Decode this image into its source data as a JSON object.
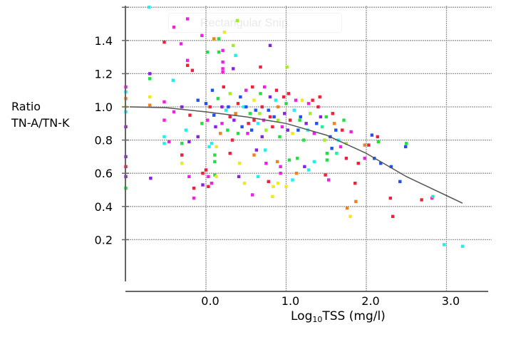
{
  "overlay": {
    "snip_label": "Rectangular Snip"
  },
  "chart_data": {
    "type": "scatter",
    "title": "",
    "xlabel_main": "Log",
    "xlabel_sub": "10",
    "xlabel_rest": "TSS (mg/l)",
    "ylabel_line1": "Ratio",
    "ylabel_line2": "TN-A/TN-K",
    "xlim": [
      -1.0,
      3.5
    ],
    "ylim": [
      0.0,
      1.6
    ],
    "x_ticks": [
      "0.0",
      "1.0",
      "2.0",
      "3.0"
    ],
    "x_tick_values": [
      0,
      1,
      2,
      3
    ],
    "y_ticks": [
      "0.2",
      "0.4",
      "0.6",
      "0.8",
      "1.0",
      "1.2",
      "1.4"
    ],
    "y_tick_values": [
      0.2,
      0.4,
      0.6,
      0.8,
      1.0,
      1.2,
      1.4
    ],
    "grid": true,
    "palette": [
      "#f0203a",
      "#f020e0",
      "#8a20e8",
      "#2050f0",
      "#20eef0",
      "#20e040",
      "#a0f020",
      "#f0e820",
      "#f08020",
      "#20f0a0"
    ],
    "trend_line": [
      [
        -0.95,
        1.0
      ],
      [
        -0.5,
        0.995
      ],
      [
        0.0,
        0.97
      ],
      [
        0.5,
        0.94
      ],
      [
        1.0,
        0.9
      ],
      [
        1.5,
        0.83
      ],
      [
        2.0,
        0.72
      ],
      [
        2.5,
        0.58
      ],
      [
        3.2,
        0.42
      ]
    ],
    "points": [
      [
        -0.71,
        1.6,
        4
      ],
      [
        -0.23,
        1.53,
        1
      ],
      [
        -0.4,
        1.48,
        1
      ],
      [
        0.39,
        1.52,
        6
      ],
      [
        0.23,
        1.45,
        7
      ],
      [
        -0.05,
        1.43,
        1
      ],
      [
        0.1,
        1.41,
        8
      ],
      [
        0.16,
        1.41,
        5
      ],
      [
        -0.52,
        1.39,
        0
      ],
      [
        -0.31,
        1.38,
        1
      ],
      [
        0.8,
        1.37,
        2
      ],
      [
        0.34,
        1.37,
        6
      ],
      [
        0.02,
        1.33,
        5
      ],
      [
        0.16,
        1.33,
        5
      ],
      [
        0.21,
        1.34,
        1
      ],
      [
        0.37,
        1.31,
        4
      ],
      [
        -0.23,
        1.28,
        1
      ],
      [
        -0.23,
        1.25,
        0
      ],
      [
        -0.17,
        1.22,
        0
      ],
      [
        0.21,
        1.27,
        1
      ],
      [
        0.21,
        1.23,
        1
      ],
      [
        0.21,
        1.21,
        1
      ],
      [
        0.34,
        1.23,
        2
      ],
      [
        0.68,
        1.24,
        0
      ],
      [
        1.01,
        1.24,
        6
      ],
      [
        -0.7,
        1.2,
        2
      ],
      [
        -0.7,
        1.17,
        5
      ],
      [
        -0.41,
        1.16,
        4
      ],
      [
        -1.0,
        1.12,
        1
      ],
      [
        -1.0,
        1.09,
        4
      ],
      [
        -1.0,
        1.05,
        8
      ],
      [
        -0.7,
        1.06,
        7
      ],
      [
        -0.7,
        1.01,
        8
      ],
      [
        -0.52,
        1.03,
        1
      ],
      [
        -1.0,
        0.97,
        4
      ],
      [
        -1.0,
        1.0,
        7
      ],
      [
        -1.0,
        0.88,
        2
      ],
      [
        -0.52,
        0.92,
        1
      ],
      [
        -1.0,
        0.7,
        2
      ],
      [
        -1.0,
        0.64,
        0
      ],
      [
        -1.0,
        0.58,
        2
      ],
      [
        -1.0,
        0.51,
        5
      ],
      [
        -0.69,
        0.57,
        2
      ],
      [
        -0.52,
        0.82,
        4
      ],
      [
        -0.52,
        0.78,
        4
      ],
      [
        -0.46,
        0.79,
        1
      ],
      [
        -0.3,
        0.78,
        5
      ],
      [
        -0.3,
        0.71,
        0
      ],
      [
        -0.3,
        0.66,
        7
      ],
      [
        -0.21,
        0.79,
        2
      ],
      [
        -0.21,
        0.58,
        1
      ],
      [
        -0.15,
        0.51,
        0
      ],
      [
        -0.15,
        0.45,
        1
      ],
      [
        -0.04,
        0.6,
        0
      ],
      [
        0.0,
        0.62,
        0
      ],
      [
        -0.04,
        0.53,
        2
      ],
      [
        0.03,
        0.52,
        0
      ],
      [
        0.07,
        0.54,
        1
      ],
      [
        0.03,
        0.58,
        1
      ],
      [
        0.11,
        0.71,
        5
      ],
      [
        0.11,
        0.67,
        5
      ],
      [
        0.11,
        0.59,
        5
      ],
      [
        0.13,
        0.58,
        7
      ],
      [
        0.04,
        0.76,
        4
      ],
      [
        0.07,
        0.78,
        4
      ],
      [
        0.13,
        0.76,
        7
      ],
      [
        0.3,
        0.72,
        0
      ],
      [
        0.42,
        0.66,
        7
      ],
      [
        0.41,
        0.58,
        2
      ],
      [
        0.48,
        0.54,
        7
      ],
      [
        0.58,
        0.47,
        1
      ],
      [
        0.65,
        0.58,
        4
      ],
      [
        0.6,
        0.71,
        8
      ],
      [
        0.63,
        0.74,
        2
      ],
      [
        0.74,
        0.74,
        4
      ],
      [
        0.75,
        0.66,
        1
      ],
      [
        0.78,
        0.55,
        0
      ],
      [
        0.84,
        0.52,
        7
      ],
      [
        0.9,
        0.54,
        7
      ],
      [
        0.83,
        0.46,
        7
      ],
      [
        0.89,
        0.67,
        8
      ],
      [
        0.93,
        0.64,
        1
      ],
      [
        0.93,
        0.6,
        1
      ],
      [
        1.0,
        0.52,
        7
      ],
      [
        1.08,
        0.56,
        4
      ],
      [
        1.04,
        0.68,
        5
      ],
      [
        1.14,
        0.69,
        5
      ],
      [
        1.13,
        0.6,
        8
      ],
      [
        1.23,
        0.64,
        2
      ],
      [
        1.28,
        0.62,
        4
      ],
      [
        1.35,
        0.67,
        4
      ],
      [
        1.49,
        0.59,
        0
      ],
      [
        1.53,
        0.56,
        1
      ],
      [
        1.51,
        0.72,
        5
      ],
      [
        1.51,
        0.68,
        5
      ],
      [
        1.63,
        0.72,
        9
      ],
      [
        1.57,
        0.75,
        3
      ],
      [
        1.75,
        0.69,
        0
      ],
      [
        1.81,
        0.85,
        1
      ],
      [
        1.86,
        0.54,
        0
      ],
      [
        1.87,
        0.43,
        8
      ],
      [
        1.76,
        0.39,
        8
      ],
      [
        1.8,
        0.34,
        7
      ],
      [
        1.9,
        0.66,
        0
      ],
      [
        1.98,
        0.69,
        1
      ],
      [
        1.98,
        0.77,
        8
      ],
      [
        2.07,
        0.83,
        3
      ],
      [
        2.14,
        0.82,
        0
      ],
      [
        2.15,
        0.79,
        5
      ],
      [
        2.03,
        0.77,
        0
      ],
      [
        2.1,
        0.69,
        3
      ],
      [
        2.18,
        0.66,
        3
      ],
      [
        2.31,
        0.64,
        3
      ],
      [
        2.42,
        0.55,
        3
      ],
      [
        2.3,
        0.45,
        0
      ],
      [
        2.33,
        0.34,
        0
      ],
      [
        2.49,
        0.76,
        3
      ],
      [
        2.5,
        0.78,
        5
      ],
      [
        2.69,
        0.44,
        0
      ],
      [
        2.82,
        0.45,
        1
      ],
      [
        2.83,
        0.46,
        9
      ],
      [
        2.97,
        0.17,
        4
      ],
      [
        3.2,
        0.16,
        4
      ],
      [
        -0.3,
        1.0,
        2
      ],
      [
        -0.2,
        0.95,
        0
      ],
      [
        -0.1,
        1.04,
        3
      ],
      [
        -0.05,
        0.9,
        5
      ],
      [
        -0.4,
        0.97,
        1
      ],
      [
        -0.25,
        0.86,
        4
      ],
      [
        -0.1,
        0.82,
        2
      ],
      [
        0.05,
        1.0,
        0
      ],
      [
        0.1,
        0.95,
        3
      ],
      [
        0.15,
        1.05,
        5
      ],
      [
        0.2,
        0.9,
        1
      ],
      [
        0.25,
        0.98,
        4
      ],
      [
        0.3,
        1.08,
        6
      ],
      [
        0.35,
        0.92,
        2
      ],
      [
        0.4,
        1.02,
        0
      ],
      [
        0.45,
        0.88,
        3
      ],
      [
        0.5,
        1.1,
        1
      ],
      [
        0.55,
        0.96,
        5
      ],
      [
        0.6,
        1.04,
        7
      ],
      [
        0.65,
        0.9,
        4
      ],
      [
        0.7,
        1.0,
        0
      ],
      [
        0.75,
        0.86,
        6
      ],
      [
        0.8,
        1.06,
        2
      ],
      [
        0.85,
        0.94,
        3
      ],
      [
        0.9,
        1.0,
        8
      ],
      [
        0.95,
        0.88,
        1
      ],
      [
        1.0,
        1.02,
        5
      ],
      [
        1.05,
        0.92,
        0
      ],
      [
        1.1,
        0.98,
        4
      ],
      [
        1.15,
        0.86,
        3
      ],
      [
        1.2,
        1.04,
        7
      ],
      [
        1.25,
        0.9,
        2
      ],
      [
        1.3,
        0.96,
        6
      ],
      [
        1.35,
        0.84,
        1
      ],
      [
        1.4,
        1.0,
        0
      ],
      [
        1.45,
        0.88,
        9
      ],
      [
        1.5,
        0.94,
        5
      ],
      [
        1.55,
        0.82,
        3
      ],
      [
        1.6,
        0.9,
        8
      ],
      [
        1.65,
        0.8,
        4
      ],
      [
        1.7,
        0.86,
        0
      ],
      [
        1.75,
        0.78,
        6
      ],
      [
        0.08,
        1.1,
        3
      ],
      [
        0.18,
        0.84,
        8
      ],
      [
        0.28,
        1.0,
        3
      ],
      [
        0.33,
        0.8,
        0
      ],
      [
        0.43,
        1.06,
        3
      ],
      [
        0.52,
        0.84,
        1
      ],
      [
        0.58,
        1.12,
        0
      ],
      [
        0.62,
        0.98,
        3
      ],
      [
        0.68,
        1.08,
        5
      ],
      [
        0.72,
        0.92,
        1
      ],
      [
        0.78,
        0.98,
        3
      ],
      [
        0.88,
        1.1,
        0
      ],
      [
        0.92,
        0.82,
        5
      ],
      [
        0.98,
        0.96,
        2
      ],
      [
        1.03,
        1.08,
        0
      ],
      [
        1.08,
        0.84,
        7
      ],
      [
        1.18,
        0.94,
        3
      ],
      [
        1.22,
        0.8,
        5
      ],
      [
        1.28,
        1.02,
        1
      ],
      [
        1.38,
        0.9,
        3
      ],
      [
        1.42,
        1.06,
        0
      ],
      [
        1.48,
        0.8,
        6
      ],
      [
        1.58,
        0.96,
        0
      ],
      [
        1.62,
        0.86,
        3
      ],
      [
        1.72,
        0.92,
        5
      ],
      [
        1.68,
        0.76,
        1
      ],
      [
        0.12,
        0.88,
        2
      ],
      [
        0.22,
        1.12,
        0
      ],
      [
        0.27,
        0.86,
        5
      ],
      [
        0.37,
        0.96,
        8
      ],
      [
        0.47,
        1.0,
        4
      ],
      [
        0.53,
        0.9,
        0
      ],
      [
        0.57,
        0.86,
        3
      ],
      [
        0.67,
        0.96,
        6
      ],
      [
        0.73,
        1.12,
        1
      ],
      [
        0.83,
        0.88,
        0
      ],
      [
        0.87,
        1.04,
        4
      ],
      [
        0.97,
        1.06,
        0
      ],
      [
        1.02,
        0.86,
        2
      ],
      [
        1.12,
        1.04,
        1
      ],
      [
        1.17,
        0.92,
        5
      ],
      [
        1.27,
        0.86,
        4
      ],
      [
        1.33,
        1.04,
        0
      ],
      [
        1.43,
        0.94,
        2
      ],
      [
        0.02,
        0.92,
        1
      ],
      [
        0.0,
        1.02,
        3
      ],
      [
        0.2,
        1.0,
        2
      ],
      [
        0.3,
        0.94,
        0
      ],
      [
        0.4,
        0.84,
        5
      ],
      [
        0.5,
        1.0,
        3
      ],
      [
        0.6,
        0.92,
        0
      ],
      [
        0.7,
        0.82,
        2
      ],
      [
        0.8,
        0.94,
        0
      ],
      [
        0.9,
        0.92,
        6
      ]
    ]
  }
}
